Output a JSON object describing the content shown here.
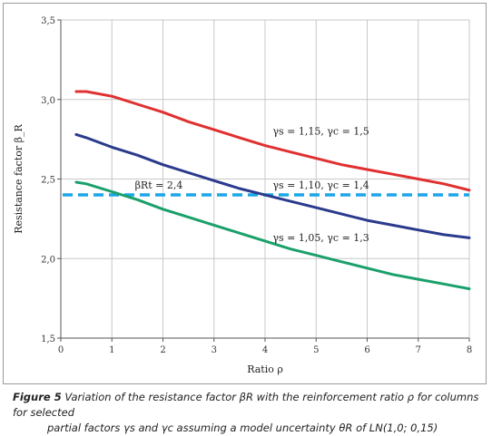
{
  "chart_data": {
    "type": "line",
    "title": "",
    "xlabel": "Ratio ρ",
    "ylabel": "Resistance factor β_R",
    "xlim": [
      0,
      8
    ],
    "ylim": [
      1.5,
      3.5
    ],
    "xticks": [
      "0",
      "1",
      "2",
      "3",
      "4",
      "5",
      "6",
      "7",
      "8"
    ],
    "yticks": [
      "1,5",
      "2,0",
      "2,5",
      "3,0",
      "3,5"
    ],
    "grid": true,
    "series": [
      {
        "name": "γs = 1,15, γc = 1,5",
        "color": "#e03030",
        "x": [
          0.3,
          0.5,
          1,
          1.5,
          2,
          2.5,
          3,
          3.5,
          4,
          4.5,
          5,
          5.5,
          6,
          6.5,
          7,
          7.5,
          8
        ],
        "y": [
          3.05,
          3.05,
          3.02,
          2.97,
          2.92,
          2.86,
          2.81,
          2.76,
          2.71,
          2.67,
          2.63,
          2.59,
          2.56,
          2.53,
          2.5,
          2.47,
          2.43
        ]
      },
      {
        "name": "γs = 1,10, γc = 1,4",
        "color": "#2a3a8c",
        "x": [
          0.3,
          0.5,
          1,
          1.5,
          2,
          2.5,
          3,
          3.5,
          4,
          4.5,
          5,
          5.5,
          6,
          6.5,
          7,
          7.5,
          8
        ],
        "y": [
          2.78,
          2.76,
          2.7,
          2.65,
          2.59,
          2.54,
          2.49,
          2.44,
          2.4,
          2.36,
          2.32,
          2.28,
          2.24,
          2.21,
          2.18,
          2.15,
          2.13
        ]
      },
      {
        "name": "γs = 1,05, γc = 1,3",
        "color": "#1aa06a",
        "x": [
          0.3,
          0.5,
          1,
          1.5,
          2,
          2.5,
          3,
          3.5,
          4,
          4.5,
          5,
          5.5,
          6,
          6.5,
          7,
          7.5,
          8
        ],
        "y": [
          2.48,
          2.47,
          2.42,
          2.37,
          2.31,
          2.26,
          2.21,
          2.16,
          2.11,
          2.06,
          2.02,
          1.98,
          1.94,
          1.9,
          1.87,
          1.84,
          1.81
        ]
      }
    ],
    "reference_line": {
      "label": "βRt = 2,4",
      "value": 2.4,
      "color": "#1aa6e8",
      "style": "dashed"
    },
    "annotations": [
      {
        "text": "γs = 1,15, γc = 1,5",
        "x": 4.15,
        "y": 2.78
      },
      {
        "text": "γs = 1,10, γc = 1,4",
        "x": 4.15,
        "y": 2.44
      },
      {
        "text": "γs = 1,05, γc = 1,3",
        "x": 4.15,
        "y": 2.11
      },
      {
        "text": "βRt = 2,4",
        "x": 1.45,
        "y": 2.44
      }
    ]
  },
  "caption": {
    "label": "Figure 5",
    "line1": "Variation of the resistance factor βR with the reinforcement ratio ρ for columns for selected",
    "line2": "partial factors γs and γc assuming a model uncertainty θR of LN(1,0; 0,15)"
  }
}
